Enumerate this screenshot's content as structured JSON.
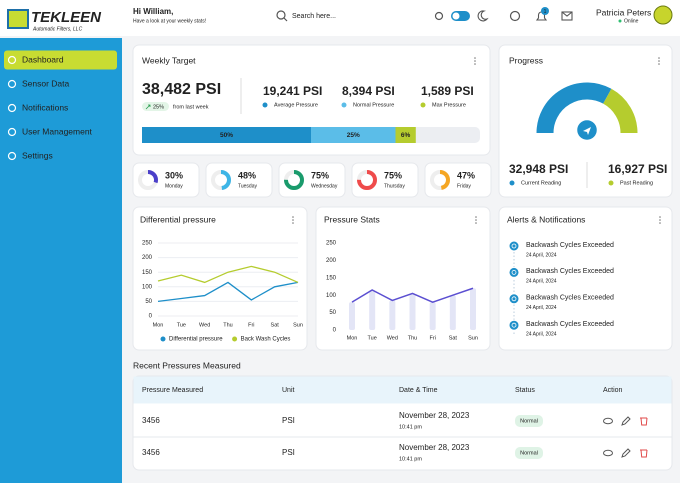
{
  "logo": {
    "name": "TEKLEEN",
    "tagline": "Automatic Filters, LLC"
  },
  "sidebar": {
    "items": [
      "Dashboard",
      "Sensor Data",
      "Notifications",
      "User Management",
      "Settings"
    ],
    "active": 0
  },
  "header": {
    "greeting": "Hi William,",
    "subtitle": "Have a look at your weekly stats!",
    "search_placeholder": "Search here...",
    "notification_count": 1,
    "user_name": "Patricia Peters",
    "user_status": "Online"
  },
  "weekly_target": {
    "title": "Weekly Target",
    "total": "38,482 PSI",
    "change": "25%",
    "change_note": "from last week",
    "stats": [
      {
        "value": "19,241 PSI",
        "label": "Average Pressure",
        "color": "#1e8fc9"
      },
      {
        "value": "8,394 PSI",
        "label": "Normal Pressure",
        "color": "#5bbde8"
      },
      {
        "value": "1,589 PSI",
        "label": "Max Pressure",
        "color": "#b5cc2e"
      }
    ],
    "progress": {
      "values": [
        50,
        25,
        6
      ],
      "value_labels": [
        "50%",
        "25%",
        "6%"
      ],
      "colors": [
        "#1e8fc9",
        "#5bbde8",
        "#b5cc2e"
      ]
    }
  },
  "progress_card": {
    "title": "Progress",
    "readings": {
      "values": [
        32948,
        16927
      ],
      "value_labels": [
        "32,948 PSI",
        "16,927 PSI"
      ],
      "names": [
        "Current Reading",
        "Past Reading"
      ],
      "colors": [
        "#1e8fc9",
        "#b5cc2e"
      ]
    }
  },
  "daily": {
    "categories": [
      "Monday",
      "Tuesday",
      "Wednesday",
      "Thursday",
      "Friday"
    ],
    "values": [
      30,
      48,
      75,
      75,
      47
    ],
    "value_labels": [
      "30%",
      "48%",
      "75%",
      "75%",
      "47%"
    ],
    "colors": [
      "#4b3fc9",
      "#3db5e6",
      "#1a9b6c",
      "#ef4b4b",
      "#f5a623"
    ]
  },
  "differential": {
    "type": "line",
    "title": "Differential pressure",
    "categories": [
      "Mon",
      "Tue",
      "Wed",
      "Thu",
      "Fri",
      "Sat",
      "Sun"
    ],
    "series": [
      {
        "name": "Differential pressure",
        "color": "#1e8fc9",
        "values": [
          50,
          60,
          70,
          115,
          55,
          100,
          115
        ]
      },
      {
        "name": "Back Wash Cycles",
        "color": "#b5cc2e",
        "values": [
          120,
          140,
          115,
          150,
          170,
          150,
          115
        ]
      }
    ],
    "ylim": [
      0,
      250
    ],
    "yticks": [
      0,
      50,
      100,
      150,
      200,
      250
    ],
    "grid": true
  },
  "pressure_stats": {
    "type": "bar",
    "title": "Pressure Stats",
    "categories": [
      "Mon",
      "Tue",
      "Wed",
      "Thu",
      "Fri",
      "Sat",
      "Sun"
    ],
    "values": [
      80,
      115,
      85,
      105,
      80,
      100,
      120
    ],
    "color": "#5b4fd1",
    "bar_color": "#e3e5f6",
    "ylim": [
      0,
      250
    ],
    "yticks": [
      0,
      50,
      100,
      150,
      200,
      250
    ]
  },
  "alerts": {
    "title": "Alerts & Notifications",
    "items": [
      {
        "text": "Backwash Cycles Exceeded",
        "date": "24 April, 2024"
      },
      {
        "text": "Backwash Cycles Exceeded",
        "date": "24 April, 2024"
      },
      {
        "text": "Backwash Cycles Exceeded",
        "date": "24 April, 2024"
      },
      {
        "text": "Backwash Cycles Exceeded",
        "date": "24 April, 2024"
      }
    ]
  },
  "table": {
    "title": "Recent Pressures Measured",
    "columns": [
      "Pressure Measured",
      "Unit",
      "Date & Time",
      "Status",
      "Action"
    ],
    "rows": [
      [
        "3456",
        "PSI",
        "November 28, 2023",
        "10:41 pm",
        "Normal"
      ],
      [
        "3456",
        "PSI",
        "November 28, 2023",
        "10:41 pm",
        "Normal"
      ]
    ]
  }
}
